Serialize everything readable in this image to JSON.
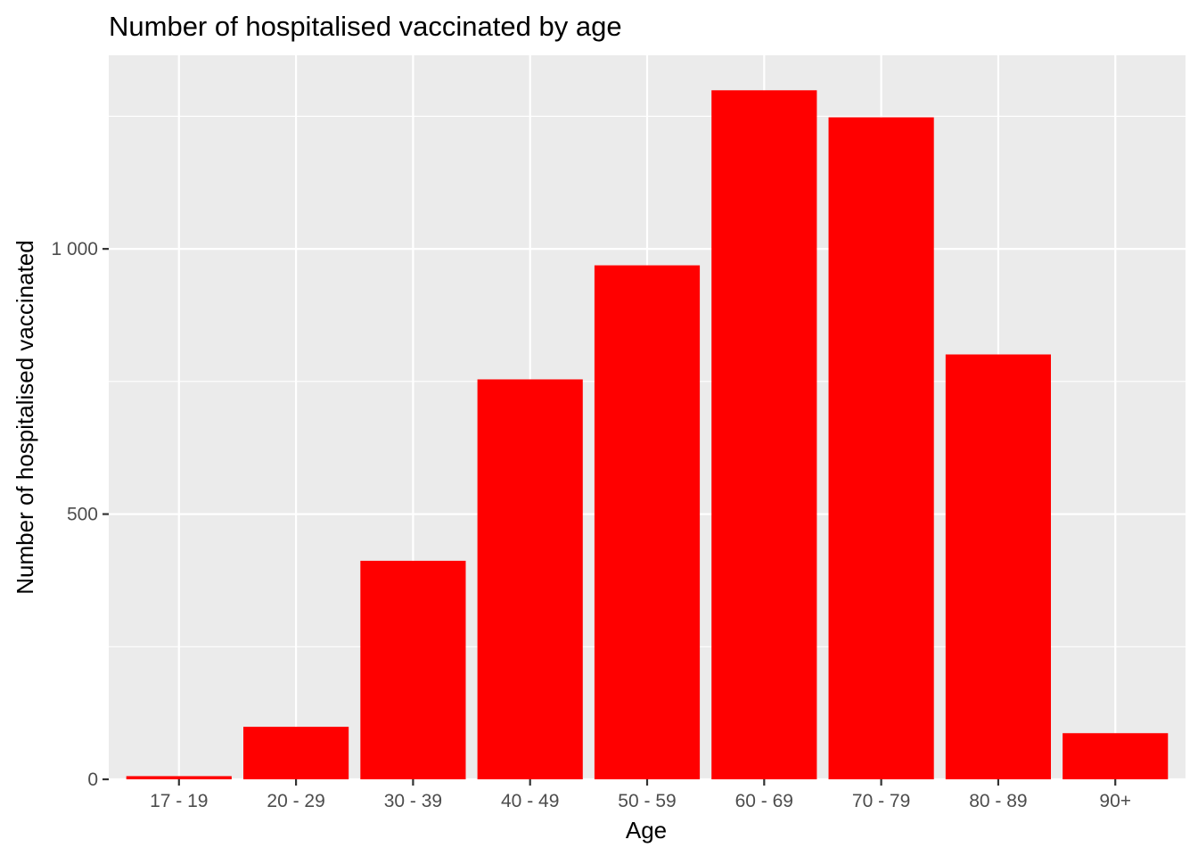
{
  "chart_data": {
    "type": "bar",
    "title": "Number of hospitalised vaccinated by age",
    "xlabel": "Age",
    "ylabel": "Number of hospitalised vaccinated",
    "categories": [
      "17 - 19",
      "20 - 29",
      "30 - 39",
      "40 - 49",
      "50 - 59",
      "60 - 69",
      "70 - 79",
      "80 - 89",
      "90+"
    ],
    "values": [
      6,
      99,
      412,
      754,
      969,
      1299,
      1248,
      801,
      87
    ],
    "ylim": [
      0,
      1365
    ],
    "yticks": [
      0,
      500,
      1000
    ],
    "ytick_labels": [
      "0",
      "500",
      "1 000"
    ],
    "grid": true,
    "colors": {
      "bar": "#ff0000",
      "panel_background": "#ebebeb",
      "grid": "#ffffff"
    }
  }
}
